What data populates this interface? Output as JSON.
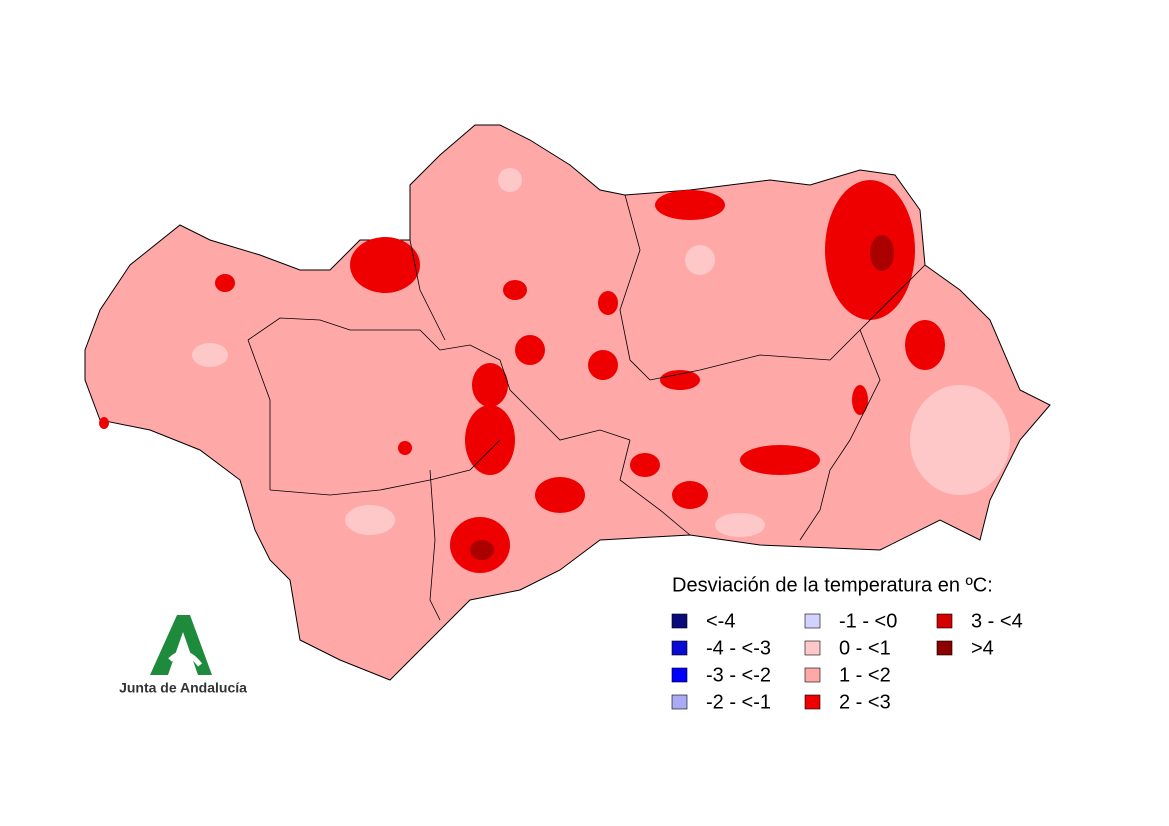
{
  "legend": {
    "title": "Desviación de la temperatura en ºC:",
    "items": [
      {
        "label": "<-4",
        "color": "#0a0a7a"
      },
      {
        "label": "-4 - <-3",
        "color": "#0a0ad2"
      },
      {
        "label": "-3 - <-2",
        "color": "#0000ff"
      },
      {
        "label": "-2 - <-1",
        "color": "#aaaaf5"
      },
      {
        "label": "-1 - <0",
        "color": "#d2d2ff"
      },
      {
        "label": "0 - <1",
        "color": "#ffc8c8"
      },
      {
        "label": "1 - <2",
        "color": "#ffa8a8"
      },
      {
        "label": "2 - <3",
        "color": "#ee0000"
      },
      {
        "label": "3 - <4",
        "color": "#d40000"
      },
      {
        "label": ">4",
        "color": "#8c0000"
      }
    ]
  },
  "logo": {
    "text": "Junta de Andalucía"
  }
}
